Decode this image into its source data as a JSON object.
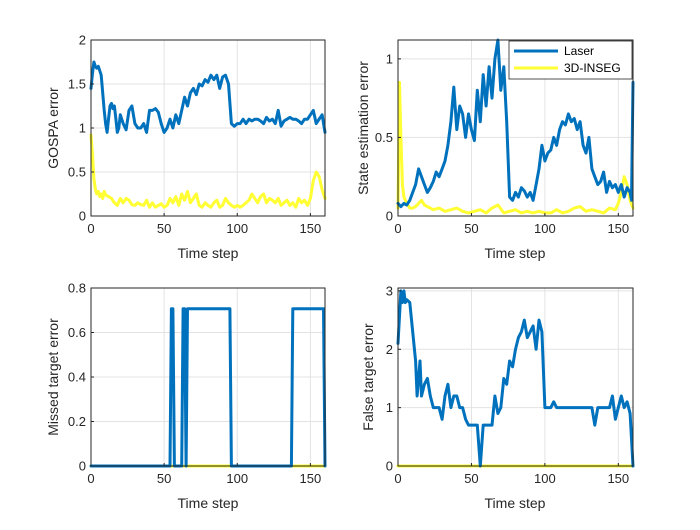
{
  "figure": {
    "series_colors": {
      "laser": "#0072BD",
      "inseg": "#FFFF33"
    },
    "legend_labels": [
      "Laser",
      "3D-INSEG"
    ]
  },
  "chart_data": [
    {
      "type": "line",
      "xlabel": "Time step",
      "ylabel": "GOSPA error",
      "xlim": [
        0,
        160
      ],
      "ylim": [
        0,
        2
      ],
      "xticks": [
        0,
        50,
        100,
        150
      ],
      "yticks": [
        0,
        0.5,
        1,
        1.5,
        2
      ],
      "ytick_labels": [
        "0",
        "0.5",
        "1",
        "1.5",
        "2"
      ],
      "grid": true,
      "legend": "none",
      "series": [
        {
          "name": "Laser",
          "x": [
            0,
            1,
            2,
            3,
            4,
            5,
            6,
            7,
            8,
            9,
            10,
            11,
            12,
            13,
            14,
            15,
            16,
            17,
            18,
            19,
            20,
            22,
            24,
            26,
            28,
            30,
            32,
            34,
            36,
            38,
            40,
            42,
            44,
            46,
            48,
            50,
            52,
            54,
            56,
            58,
            60,
            62,
            64,
            66,
            68,
            70,
            72,
            74,
            76,
            78,
            80,
            82,
            84,
            86,
            88,
            90,
            92,
            94,
            96,
            98,
            100,
            102,
            104,
            106,
            108,
            110,
            112,
            114,
            116,
            118,
            120,
            122,
            124,
            126,
            128,
            130,
            132,
            134,
            136,
            138,
            140,
            142,
            144,
            146,
            148,
            150,
            152,
            154,
            156,
            158,
            160
          ],
          "y": [
            1.45,
            1.62,
            1.75,
            1.7,
            1.68,
            1.7,
            1.65,
            1.6,
            1.4,
            1.2,
            1.05,
            0.95,
            1.1,
            1.25,
            1.28,
            1.22,
            1.25,
            1.1,
            0.95,
            1.0,
            1.15,
            1.05,
            0.98,
            1.2,
            1.25,
            1.05,
            1.0,
            1.0,
            1.05,
            0.95,
            1.2,
            1.2,
            1.22,
            1.18,
            1.05,
            0.95,
            1.0,
            1.1,
            1.0,
            1.15,
            1.05,
            1.2,
            1.35,
            1.25,
            1.4,
            1.45,
            1.38,
            1.5,
            1.48,
            1.55,
            1.52,
            1.6,
            1.55,
            1.6,
            1.45,
            1.58,
            1.6,
            1.5,
            1.05,
            1.02,
            1.05,
            1.05,
            1.1,
            1.05,
            1.1,
            1.08,
            1.1,
            1.1,
            1.08,
            1.05,
            1.12,
            1.08,
            1.1,
            1.05,
            1.2,
            1.02,
            1.08,
            1.1,
            1.12,
            1.1,
            1.1,
            1.08,
            1.05,
            1.1,
            1.1,
            1.15,
            1.2,
            1.05,
            1.1,
            1.15,
            0.95
          ]
        },
        {
          "name": "3D-INSEG",
          "x": [
            0,
            1,
            2,
            3,
            4,
            5,
            6,
            7,
            8,
            9,
            10,
            12,
            14,
            16,
            18,
            20,
            22,
            24,
            26,
            28,
            30,
            32,
            34,
            36,
            38,
            40,
            42,
            44,
            46,
            48,
            50,
            52,
            54,
            56,
            58,
            60,
            62,
            64,
            66,
            68,
            70,
            72,
            74,
            76,
            78,
            80,
            82,
            84,
            86,
            88,
            90,
            92,
            94,
            96,
            98,
            100,
            102,
            104,
            106,
            108,
            110,
            112,
            114,
            116,
            118,
            120,
            122,
            124,
            126,
            128,
            130,
            132,
            134,
            136,
            138,
            140,
            142,
            144,
            146,
            148,
            150,
            152,
            154,
            156,
            158,
            160
          ],
          "y": [
            0.92,
            0.7,
            0.42,
            0.3,
            0.25,
            0.28,
            0.22,
            0.25,
            0.2,
            0.28,
            0.24,
            0.22,
            0.2,
            0.15,
            0.12,
            0.2,
            0.15,
            0.2,
            0.18,
            0.13,
            0.12,
            0.15,
            0.13,
            0.12,
            0.18,
            0.1,
            0.15,
            0.1,
            0.12,
            0.14,
            0.1,
            0.12,
            0.2,
            0.15,
            0.22,
            0.12,
            0.25,
            0.18,
            0.28,
            0.15,
            0.2,
            0.25,
            0.12,
            0.1,
            0.15,
            0.12,
            0.1,
            0.15,
            0.18,
            0.1,
            0.12,
            0.2,
            0.15,
            0.12,
            0.1,
            0.12,
            0.1,
            0.12,
            0.15,
            0.18,
            0.25,
            0.2,
            0.15,
            0.22,
            0.25,
            0.15,
            0.2,
            0.18,
            0.15,
            0.2,
            0.12,
            0.15,
            0.18,
            0.12,
            0.15,
            0.1,
            0.2,
            0.15,
            0.18,
            0.12,
            0.2,
            0.4,
            0.5,
            0.45,
            0.3,
            0.2
          ]
        }
      ]
    },
    {
      "type": "line",
      "xlabel": "Time step",
      "ylabel": "State estimation error",
      "xlim": [
        0,
        160
      ],
      "ylim": [
        0,
        1.12
      ],
      "xticks": [
        0,
        50,
        100,
        150
      ],
      "yticks": [
        0,
        0.5,
        1
      ],
      "ytick_labels": [
        "0",
        "0.5",
        "1"
      ],
      "grid": true,
      "legend": "top-right",
      "series": [
        {
          "name": "Laser",
          "x": [
            0,
            2,
            4,
            6,
            8,
            10,
            12,
            14,
            16,
            18,
            20,
            22,
            24,
            26,
            28,
            30,
            32,
            34,
            36,
            38,
            40,
            42,
            44,
            46,
            48,
            50,
            52,
            54,
            56,
            58,
            60,
            62,
            64,
            66,
            68,
            70,
            72,
            74,
            76,
            78,
            80,
            82,
            84,
            86,
            88,
            90,
            92,
            94,
            96,
            98,
            100,
            102,
            104,
            106,
            108,
            110,
            112,
            114,
            116,
            118,
            120,
            122,
            124,
            126,
            128,
            130,
            132,
            134,
            136,
            138,
            140,
            142,
            144,
            146,
            148,
            150,
            152,
            154,
            156,
            158,
            159,
            160
          ],
          "y": [
            0.08,
            0.06,
            0.08,
            0.07,
            0.1,
            0.15,
            0.2,
            0.3,
            0.25,
            0.2,
            0.15,
            0.18,
            0.22,
            0.28,
            0.25,
            0.3,
            0.35,
            0.45,
            0.6,
            0.82,
            0.55,
            0.7,
            0.65,
            0.5,
            0.65,
            0.55,
            0.48,
            0.8,
            0.6,
            0.9,
            0.7,
            0.95,
            0.75,
            1.0,
            1.12,
            0.8,
            0.95,
            0.6,
            0.12,
            0.1,
            0.15,
            0.12,
            0.18,
            0.16,
            0.12,
            0.15,
            0.1,
            0.2,
            0.3,
            0.45,
            0.35,
            0.4,
            0.42,
            0.5,
            0.45,
            0.55,
            0.6,
            0.58,
            0.65,
            0.6,
            0.62,
            0.55,
            0.6,
            0.45,
            0.4,
            0.5,
            0.3,
            0.25,
            0.2,
            0.22,
            0.28,
            0.15,
            0.22,
            0.18,
            0.2,
            0.15,
            0.2,
            0.12,
            0.18,
            0.15,
            0.1,
            0.85
          ]
        },
        {
          "name": "3D-INSEG",
          "x": [
            0,
            1,
            2,
            3,
            4,
            6,
            8,
            10,
            12,
            14,
            16,
            18,
            20,
            24,
            28,
            32,
            36,
            40,
            44,
            48,
            52,
            56,
            60,
            64,
            68,
            72,
            76,
            80,
            84,
            88,
            92,
            96,
            100,
            104,
            108,
            112,
            116,
            120,
            124,
            128,
            132,
            136,
            140,
            144,
            148,
            150,
            152,
            154,
            156,
            158,
            160
          ],
          "y": [
            0.05,
            0.85,
            0.5,
            0.2,
            0.12,
            0.08,
            0.05,
            0.05,
            0.06,
            0.08,
            0.1,
            0.07,
            0.06,
            0.04,
            0.05,
            0.03,
            0.04,
            0.05,
            0.03,
            0.02,
            0.03,
            0.04,
            0.02,
            0.05,
            0.07,
            0.02,
            0.03,
            0.04,
            0.02,
            0.03,
            0.02,
            0.03,
            0.02,
            0.02,
            0.04,
            0.02,
            0.03,
            0.05,
            0.06,
            0.03,
            0.04,
            0.03,
            0.02,
            0.05,
            0.04,
            0.08,
            0.15,
            0.25,
            0.2,
            0.1,
            0.05
          ]
        }
      ]
    },
    {
      "type": "line",
      "xlabel": "Time step",
      "ylabel": "Missed target error",
      "xlim": [
        0,
        160
      ],
      "ylim": [
        0,
        0.8
      ],
      "xticks": [
        0,
        50,
        100,
        150
      ],
      "yticks": [
        0,
        0.2,
        0.4,
        0.6,
        0.8
      ],
      "ytick_labels": [
        "0",
        "0.2",
        "0.4",
        "0.6",
        "0.8"
      ],
      "grid": true,
      "legend": "none",
      "series": [
        {
          "name": "Laser",
          "x": [
            0,
            54,
            55,
            56,
            57,
            62,
            63,
            64,
            65,
            66,
            67,
            68,
            95,
            96,
            97,
            137,
            138,
            159,
            160
          ],
          "y": [
            0,
            0,
            0.707,
            0.707,
            0,
            0,
            0.707,
            0.707,
            0,
            0.707,
            0.707,
            0.707,
            0.707,
            0,
            0,
            0,
            0.707,
            0.707,
            0
          ],
          "interp": "step"
        },
        {
          "name": "3D-INSEG",
          "x": [
            0,
            160
          ],
          "y": [
            0,
            0
          ]
        }
      ]
    },
    {
      "type": "line",
      "xlabel": "Time step",
      "ylabel": "False target error",
      "xlim": [
        0,
        160
      ],
      "ylim": [
        0,
        3.05
      ],
      "xticks": [
        0,
        50,
        100,
        150
      ],
      "yticks": [
        0,
        1,
        2,
        3
      ],
      "ytick_labels": [
        "0",
        "1",
        "2",
        "3"
      ],
      "grid": true,
      "legend": "none",
      "series": [
        {
          "name": "Laser",
          "x": [
            0,
            2,
            3,
            4,
            5,
            6,
            8,
            10,
            12,
            13,
            14,
            15,
            16,
            18,
            20,
            22,
            24,
            26,
            28,
            30,
            32,
            34,
            36,
            38,
            40,
            42,
            44,
            46,
            48,
            50,
            52,
            54,
            56,
            58,
            60,
            62,
            64,
            66,
            68,
            70,
            72,
            74,
            76,
            78,
            80,
            82,
            84,
            86,
            88,
            90,
            92,
            94,
            96,
            98,
            100,
            102,
            104,
            106,
            108,
            110,
            112,
            114,
            116,
            118,
            120,
            122,
            124,
            126,
            128,
            130,
            132,
            134,
            136,
            138,
            140,
            142,
            144,
            146,
            148,
            150,
            152,
            154,
            156,
            158,
            160
          ],
          "y": [
            2.1,
            3.0,
            2.8,
            3.0,
            2.8,
            2.85,
            2.8,
            2.3,
            1.8,
            1.2,
            1.5,
            1.8,
            1.2,
            1.4,
            1.5,
            1.2,
            1.0,
            1.0,
            1.0,
            0.8,
            1.2,
            1.4,
            1.0,
            1.2,
            1.2,
            1.0,
            1.0,
            0.8,
            0.7,
            0.7,
            0.7,
            0.7,
            0.0,
            0.7,
            0.7,
            0.7,
            0.7,
            1.2,
            0.9,
            1.0,
            1.5,
            1.4,
            1.8,
            1.7,
            2.0,
            2.2,
            2.3,
            2.5,
            2.2,
            2.3,
            2.4,
            2.0,
            2.5,
            2.3,
            1.0,
            1.0,
            1.0,
            1.1,
            1.0,
            1.0,
            1.0,
            1.0,
            1.0,
            1.0,
            1.0,
            1.0,
            1.0,
            1.0,
            1.0,
            1.0,
            1.0,
            0.7,
            1.0,
            1.0,
            1.0,
            1.0,
            1.0,
            1.2,
            0.8,
            1.0,
            1.2,
            1.0,
            1.1,
            0.9,
            0.0
          ]
        },
        {
          "name": "3D-INSEG",
          "x": [
            0,
            160
          ],
          "y": [
            0,
            0
          ]
        }
      ]
    }
  ]
}
